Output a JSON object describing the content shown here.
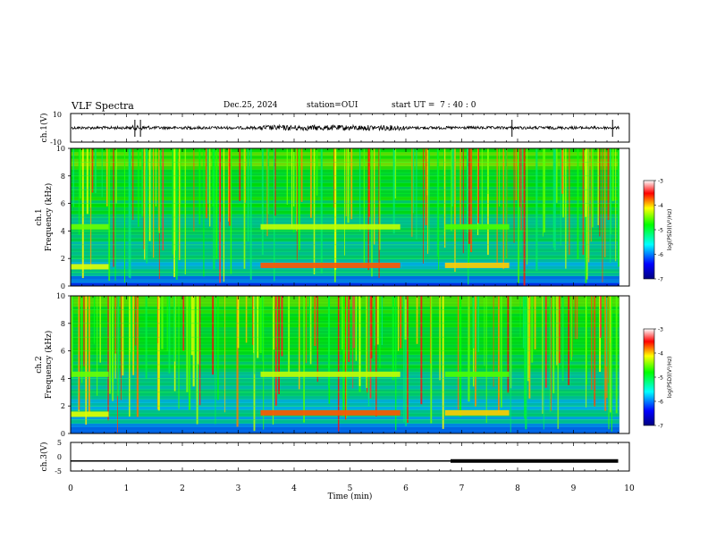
{
  "header": {
    "title": "VLF Spectra",
    "date": "Dec.25, 2024",
    "station": "station=OUI",
    "start": "start UT =  7 : 40 : 0"
  },
  "chart_data": [
    {
      "type": "line",
      "title": "",
      "ylabel": "ch.1(V)",
      "ylim": [
        -10,
        10
      ],
      "yticks": [
        "10",
        "-10"
      ],
      "xlim": [
        0,
        10
      ],
      "description": "waveform trace near 0 V with small amplitude"
    },
    {
      "type": "heatmap",
      "ylabel_line1": "ch.1",
      "ylabel_line2": "Frequency (kHz)",
      "ylim": [
        0,
        10
      ],
      "yticks": [
        "0",
        "2",
        "4",
        "6",
        "8",
        "10"
      ],
      "xlim": [
        0,
        10
      ],
      "colorbar": {
        "label": "log(PSD)(V²/Hz)",
        "ticks": [
          "-3",
          "-4",
          "-5",
          "-6",
          "-7"
        ],
        "range": [
          -7,
          -3
        ]
      }
    },
    {
      "type": "heatmap",
      "ylabel_line1": "ch.2",
      "ylabel_line2": "Frequency (kHz)",
      "ylim": [
        0,
        10
      ],
      "yticks": [
        "0",
        "2",
        "4",
        "6",
        "8",
        "10"
      ],
      "xlim": [
        0,
        10
      ],
      "colorbar": {
        "label": "log(PSD)(V²/Hz)",
        "ticks": [
          "-3",
          "-4",
          "-5",
          "-6",
          "-7"
        ],
        "range": [
          -7,
          -3
        ]
      }
    },
    {
      "type": "line",
      "ylabel": "ch.3(V)",
      "ylim": [
        -5,
        5
      ],
      "yticks": [
        "5",
        "0",
        "-5"
      ],
      "xlim": [
        0,
        10
      ],
      "xlabel": "Time (min)",
      "xticks": [
        "0",
        "1",
        "2",
        "3",
        "4",
        "5",
        "6",
        "7",
        "8",
        "9",
        "10"
      ],
      "series": [
        {
          "x": [
            0,
            6.8,
            6.8,
            9.8
          ],
          "y": [
            -1.5,
            -1.5,
            -1.5,
            -1.5
          ]
        }
      ]
    }
  ]
}
